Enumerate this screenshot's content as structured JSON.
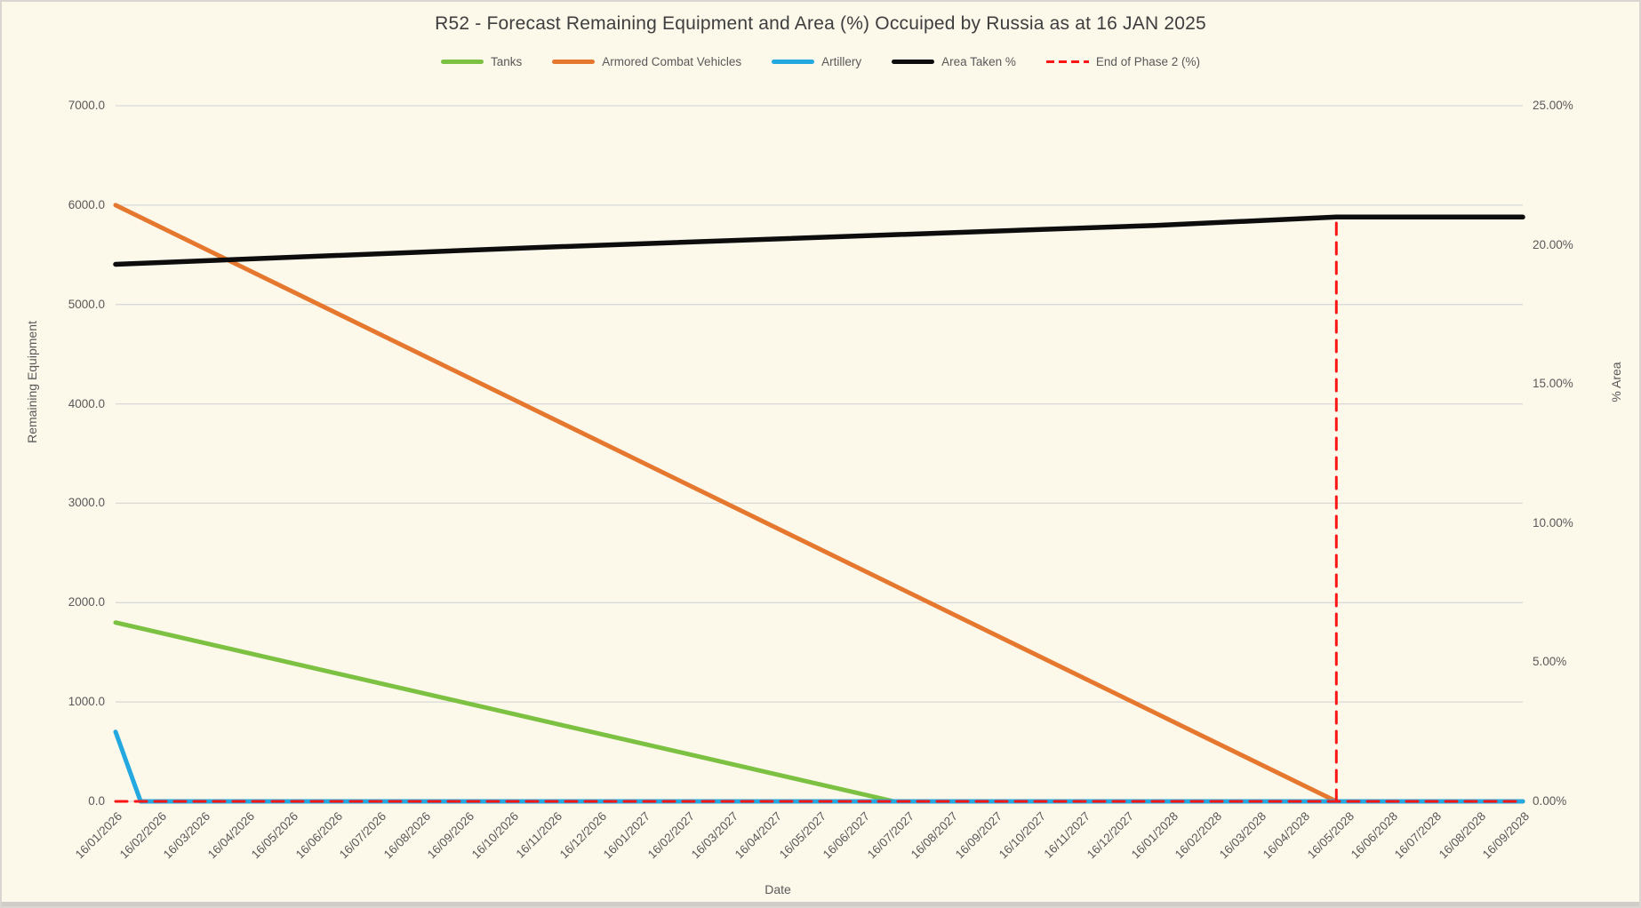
{
  "title": "R52 - Forecast Remaining Equipment and Area (%) Occuiped by Russia as at 16 JAN 2025",
  "colors": {
    "background": "#FCF8EA",
    "frame": "#D9D6D1",
    "gridline": "#D9D9D9",
    "text": "#595959",
    "title_text": "#3E3E3E",
    "tanks_green": "#7CC142",
    "acv_orange": "#E5772E",
    "artillery_blue": "#23A8E0",
    "area_black": "#0D0D0D",
    "phase2_red": "#FB1616"
  },
  "legend": {
    "items": [
      {
        "label": "Tanks",
        "color": "#7CC142",
        "dashed": false
      },
      {
        "label": "Armored Combat Vehicles",
        "color": "#E5772E",
        "dashed": false
      },
      {
        "label": "Artillery",
        "color": "#23A8E0",
        "dashed": false
      },
      {
        "label": "Area Taken %",
        "color": "#0D0D0D",
        "dashed": false
      },
      {
        "label": "End of Phase 2 (%)",
        "color": "#FB1616",
        "dashed": true
      }
    ]
  },
  "chart_data": {
    "type": "line",
    "title": "R52 - Forecast Remaining Equipment and Area (%) Occuiped by Russia as at 16 JAN 2025",
    "grid": "horizontal",
    "legend_position": "top",
    "x_axis": {
      "label": "Date",
      "categories": [
        "16/01/2026",
        "16/02/2026",
        "16/03/2026",
        "16/04/2026",
        "16/05/2026",
        "16/06/2026",
        "16/07/2026",
        "16/08/2026",
        "16/09/2026",
        "16/10/2026",
        "16/11/2026",
        "16/12/2026",
        "16/01/2027",
        "16/02/2027",
        "16/03/2027",
        "16/04/2027",
        "16/05/2027",
        "16/06/2027",
        "16/07/2027",
        "16/08/2027",
        "16/09/2027",
        "16/10/2027",
        "16/11/2027",
        "16/12/2027",
        "16/01/2028",
        "16/02/2028",
        "16/03/2028",
        "16/04/2028",
        "16/05/2028",
        "16/06/2028",
        "16/07/2028",
        "16/08/2028",
        "16/09/2028"
      ]
    },
    "y_left": {
      "label": "Remaining Equipment",
      "min": 0,
      "max": 7000,
      "tick_step": 1000,
      "tick_labels": [
        "7000.0",
        "6000.0",
        "5000.0",
        "4000.0",
        "3000.0",
        "2000.0",
        "1000.0",
        "0.0"
      ]
    },
    "y_right": {
      "label": "% Area",
      "min": 0,
      "max": 25,
      "tick_step": 5,
      "tick_labels": [
        "25.00%",
        "20.00%",
        "15.00%",
        "10.00%",
        "5.00%",
        "0.00%"
      ]
    },
    "x_unit_note": "series x values are month indexes, 0 = 16/01/2026, 32 = 16/09/2028",
    "series": [
      {
        "name": "Tanks",
        "axis": "left",
        "color": "#7CC142",
        "stroke_width": 5,
        "points": [
          [
            0,
            1800
          ],
          [
            17.7,
            0
          ],
          [
            32,
            0
          ]
        ]
      },
      {
        "name": "Armored Combat Vehicles",
        "axis": "left",
        "color": "#E5772E",
        "stroke_width": 5,
        "points": [
          [
            0,
            6000
          ],
          [
            27.76,
            0
          ],
          [
            32,
            0
          ]
        ]
      },
      {
        "name": "Artillery",
        "axis": "left",
        "color": "#23A8E0",
        "stroke_width": 5,
        "points": [
          [
            0,
            700
          ],
          [
            0.57,
            0
          ],
          [
            32,
            0
          ]
        ]
      },
      {
        "name": "Area Taken %",
        "axis": "right",
        "color": "#0D0D0D",
        "stroke_width": 5.5,
        "points": [
          [
            0,
            19.3
          ],
          [
            9.5,
            19.9
          ],
          [
            23.65,
            20.7
          ],
          [
            27.76,
            21.0
          ],
          [
            32,
            21.0
          ]
        ]
      },
      {
        "name": "End of Phase 2 (%)",
        "axis": "right",
        "color": "#FB1616",
        "stroke_width": 3,
        "dashed": true,
        "segments": [
          [
            [
              0,
              0
            ],
            [
              32,
              0
            ]
          ],
          [
            [
              27.76,
              0
            ],
            [
              27.76,
              21.0
            ]
          ]
        ]
      }
    ]
  }
}
